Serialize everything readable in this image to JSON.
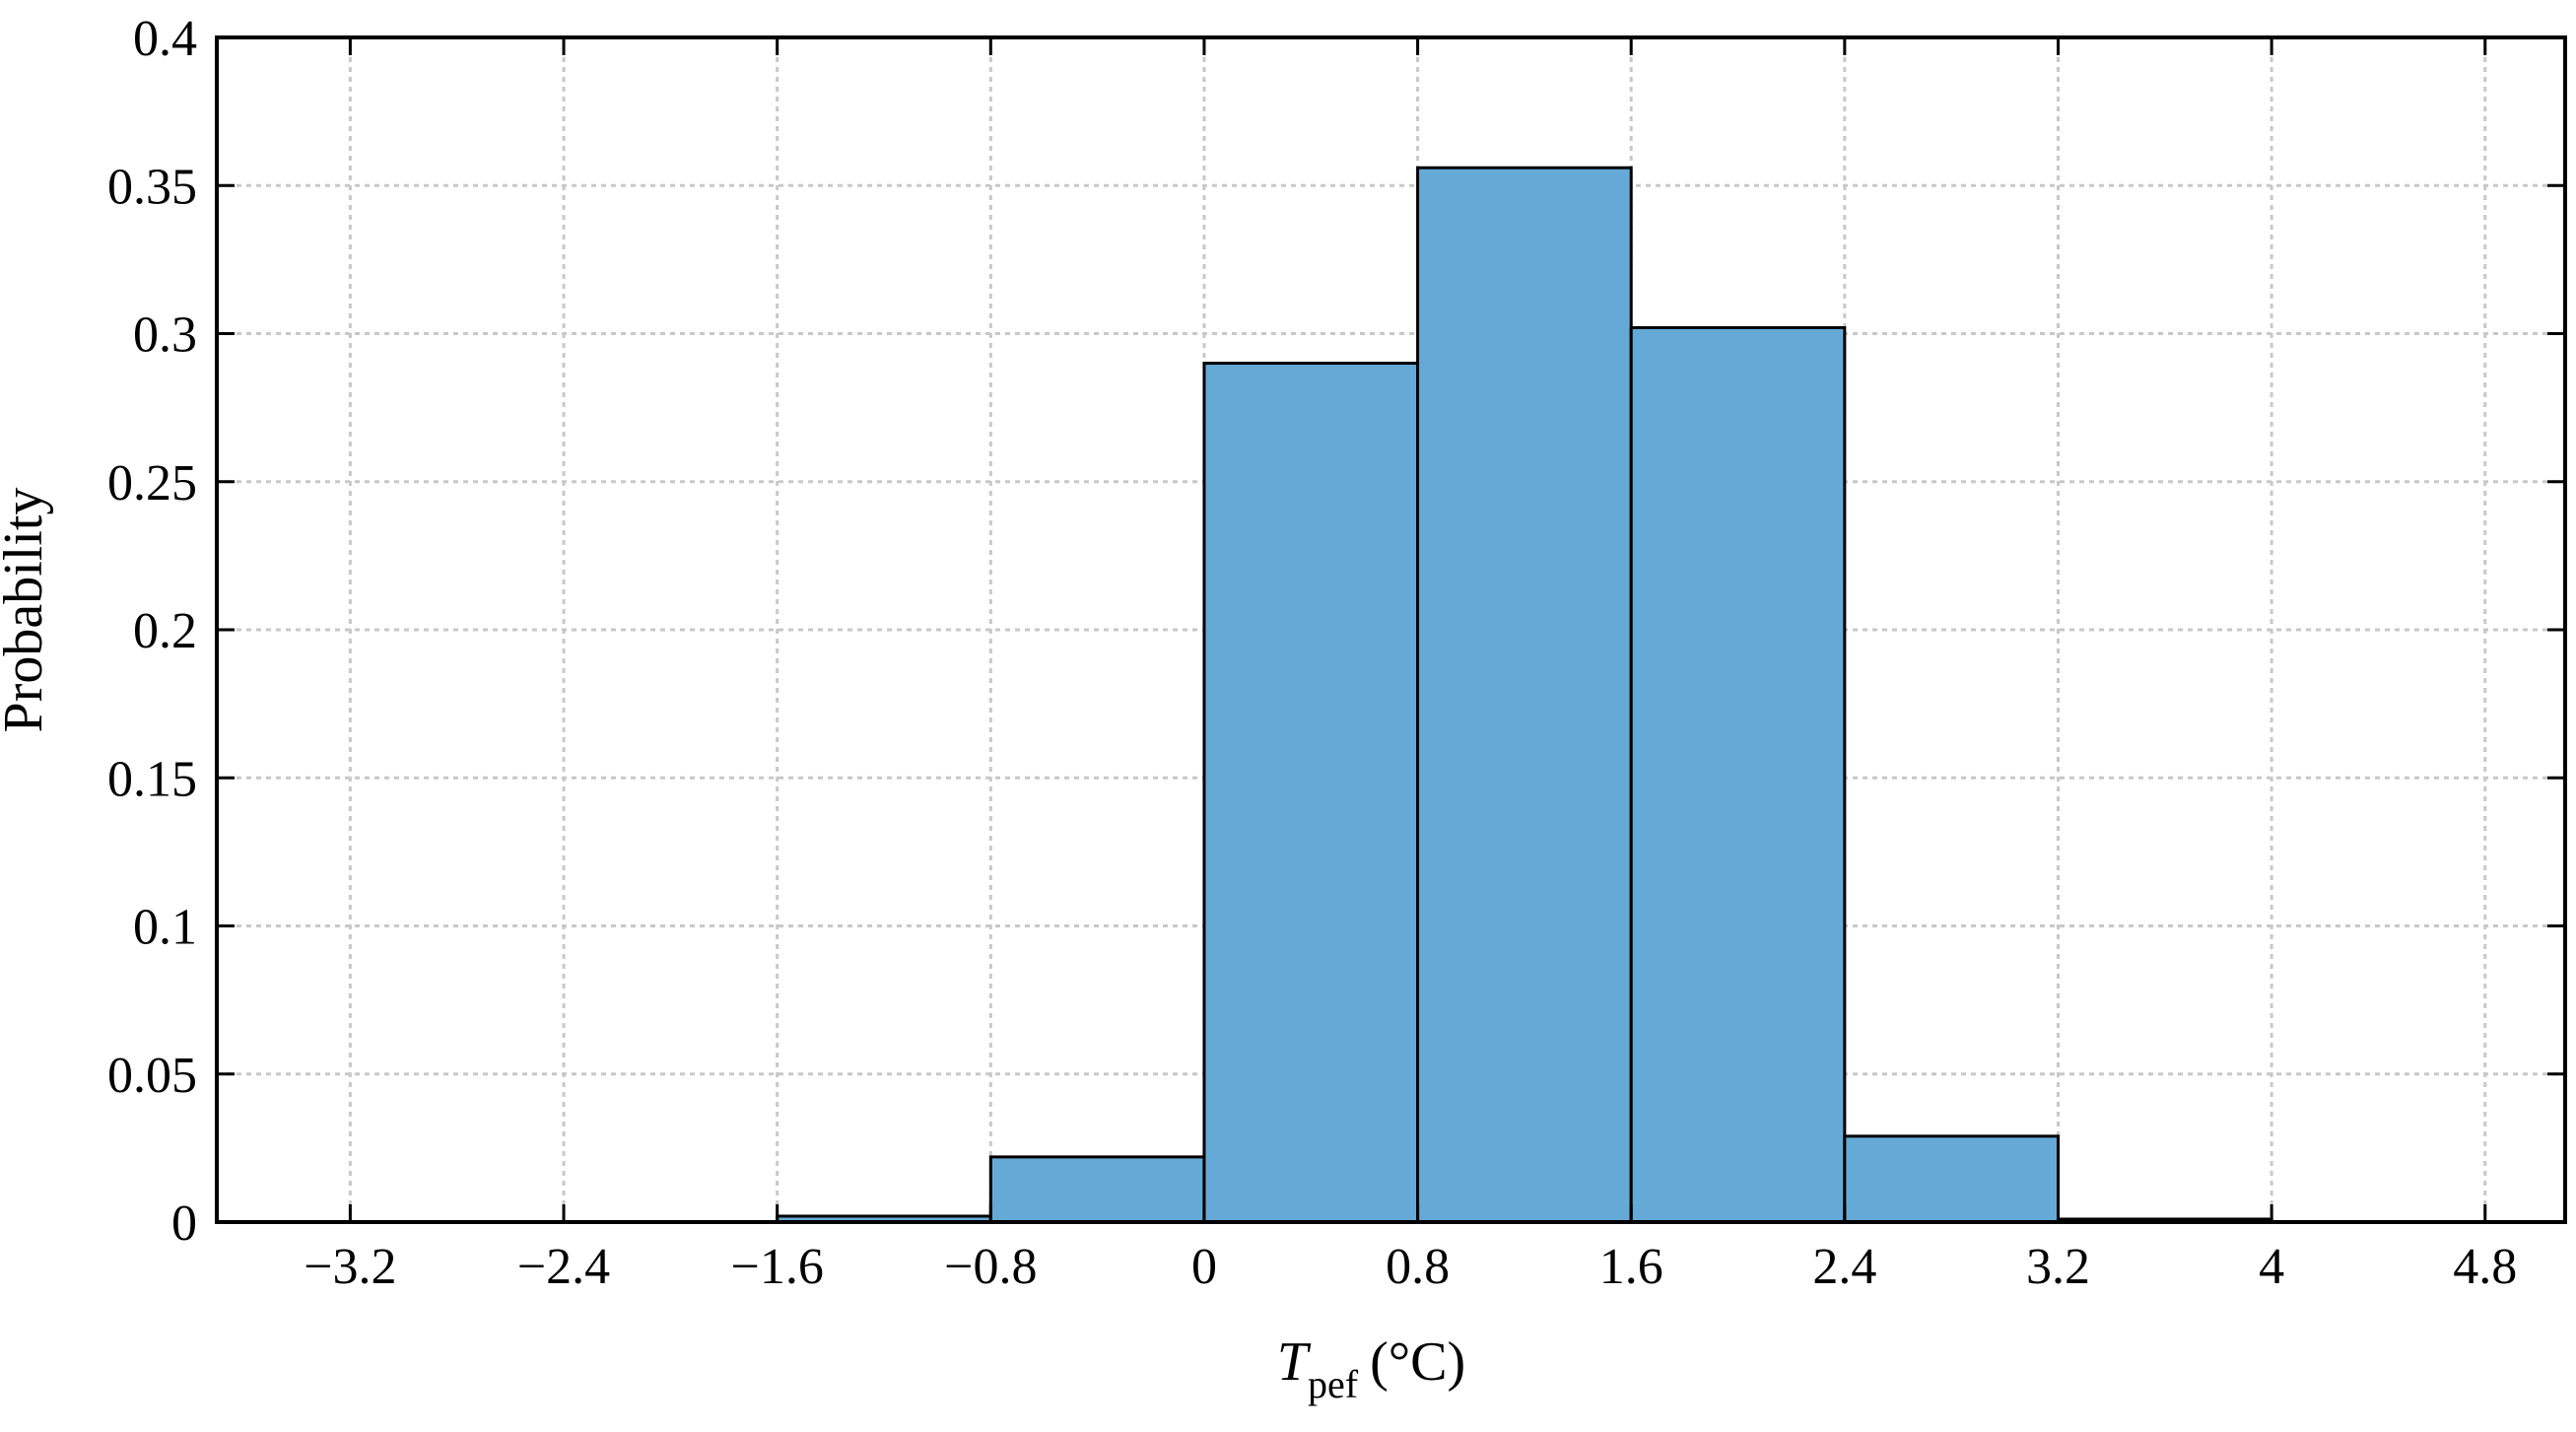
{
  "chart_data": {
    "type": "bar",
    "subtype": "histogram",
    "title": "",
    "xlabel": {
      "main": "T",
      "subscript": "pef",
      "unit": "(°C)"
    },
    "ylabel": "Probability",
    "xlim": [
      -3.7,
      5.1
    ],
    "ylim": [
      0,
      0.4
    ],
    "xticks": [
      -3.2,
      -2.4,
      -1.6,
      -0.8,
      0,
      0.8,
      1.6,
      2.4,
      3.2,
      4,
      4.8
    ],
    "xtick_labels": [
      "−3.2",
      "−2.4",
      "−1.6",
      "−0.8",
      "0",
      "0.8",
      "1.6",
      "2.4",
      "3.2",
      "4",
      "4.8"
    ],
    "yticks": [
      0,
      0.05,
      0.1,
      0.15,
      0.2,
      0.25,
      0.3,
      0.35,
      0.4
    ],
    "ytick_labels": [
      "0",
      "0.05",
      "0.1",
      "0.15",
      "0.2",
      "0.25",
      "0.3",
      "0.35",
      "0.4"
    ],
    "grid": true,
    "legend": "none",
    "bar_color": "#65a9d7",
    "bin_edges": [
      -1.6,
      -0.8,
      0,
      0.8,
      1.6,
      2.4,
      3.2,
      4.0
    ],
    "values": [
      0.002,
      0.022,
      0.29,
      0.356,
      0.302,
      0.029,
      0.001
    ]
  }
}
